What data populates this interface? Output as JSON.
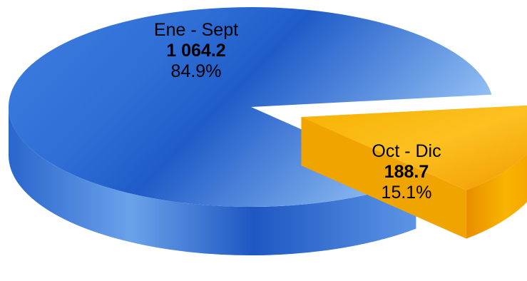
{
  "chart_data": {
    "type": "pie",
    "style": "3d-exploded",
    "categories": [
      "Ene - Sept",
      "Oct - Dic"
    ],
    "values": [
      1064.2,
      188.7
    ],
    "value_labels": [
      "1 064.2",
      "188.7"
    ],
    "percent_labels": [
      "84.9%",
      "15.1%"
    ],
    "exploded": [
      false,
      true
    ],
    "colors": [
      "#3a78d8",
      "#f5a800"
    ],
    "legend": "none"
  }
}
